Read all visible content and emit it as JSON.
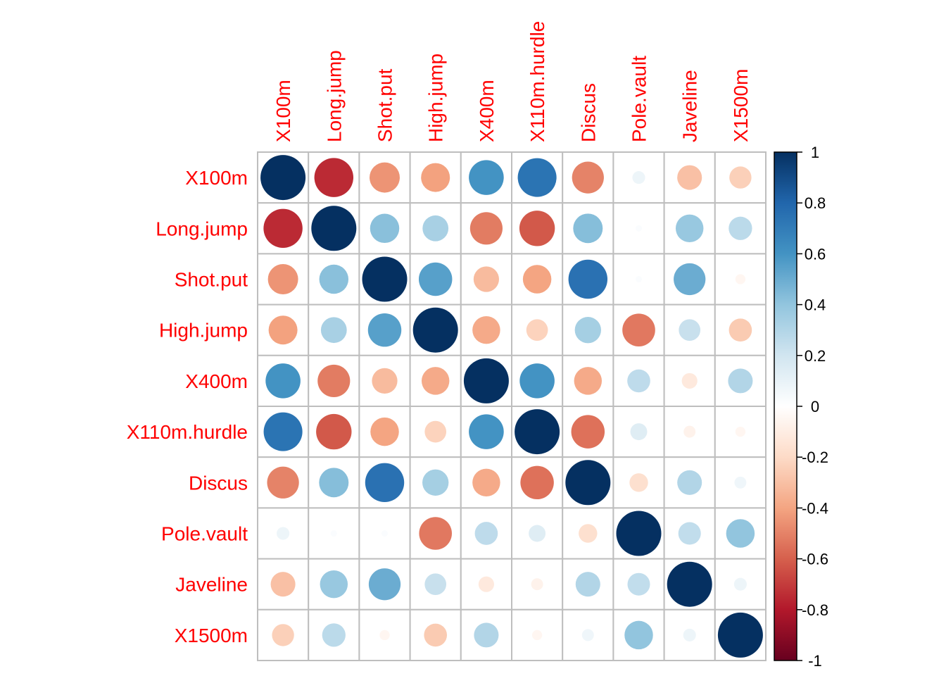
{
  "chart_data": {
    "type": "heatmap",
    "subtype": "corrplot-circle",
    "title": "",
    "variables": [
      "X100m",
      "Long.jump",
      "Shot.put",
      "High.jump",
      "X400m",
      "X110m.hurdle",
      "Discus",
      "Pole.vault",
      "Javeline",
      "X1500m"
    ],
    "matrix": [
      [
        1.0,
        -0.75,
        -0.45,
        -0.41,
        0.6,
        0.74,
        -0.5,
        0.08,
        -0.3,
        -0.24
      ],
      [
        -0.75,
        1.0,
        0.42,
        0.33,
        -0.52,
        -0.62,
        0.43,
        0.02,
        0.38,
        0.27
      ],
      [
        -0.45,
        0.42,
        1.0,
        0.55,
        -0.32,
        -0.4,
        0.75,
        0.02,
        0.5,
        -0.05
      ],
      [
        -0.41,
        0.33,
        0.55,
        1.0,
        -0.38,
        -0.23,
        0.34,
        -0.53,
        0.23,
        -0.26
      ],
      [
        0.6,
        -0.52,
        -0.32,
        -0.38,
        1.0,
        0.6,
        -0.38,
        0.26,
        -0.12,
        0.3
      ],
      [
        0.74,
        -0.62,
        -0.4,
        -0.23,
        0.6,
        1.0,
        -0.55,
        0.14,
        -0.07,
        -0.05
      ],
      [
        -0.5,
        0.43,
        0.75,
        0.34,
        -0.38,
        -0.55,
        1.0,
        -0.17,
        0.3,
        0.07
      ],
      [
        0.08,
        0.02,
        0.02,
        -0.53,
        0.26,
        0.14,
        -0.17,
        1.0,
        0.25,
        0.4
      ],
      [
        -0.3,
        0.38,
        0.5,
        0.23,
        -0.12,
        -0.07,
        0.3,
        0.25,
        1.0,
        0.08
      ],
      [
        -0.24,
        0.27,
        -0.05,
        -0.26,
        0.3,
        -0.05,
        0.07,
        0.4,
        0.08,
        1.0
      ]
    ],
    "colorbar": {
      "ticks": [
        "1",
        "0.8",
        "0.6",
        "0.4",
        "0.2",
        "0",
        "-0.2",
        "-0.4",
        "-0.6",
        "-0.8",
        "-1"
      ],
      "range": [
        -1,
        1
      ],
      "colors": [
        "#67001f",
        "#b2182b",
        "#d6604d",
        "#f4a582",
        "#fddbc7",
        "#ffffff",
        "#d1e5f0",
        "#92c5de",
        "#4393c3",
        "#2166ac",
        "#053061"
      ]
    },
    "label_color": "#ff0000",
    "grid_color": "#bebebe"
  }
}
